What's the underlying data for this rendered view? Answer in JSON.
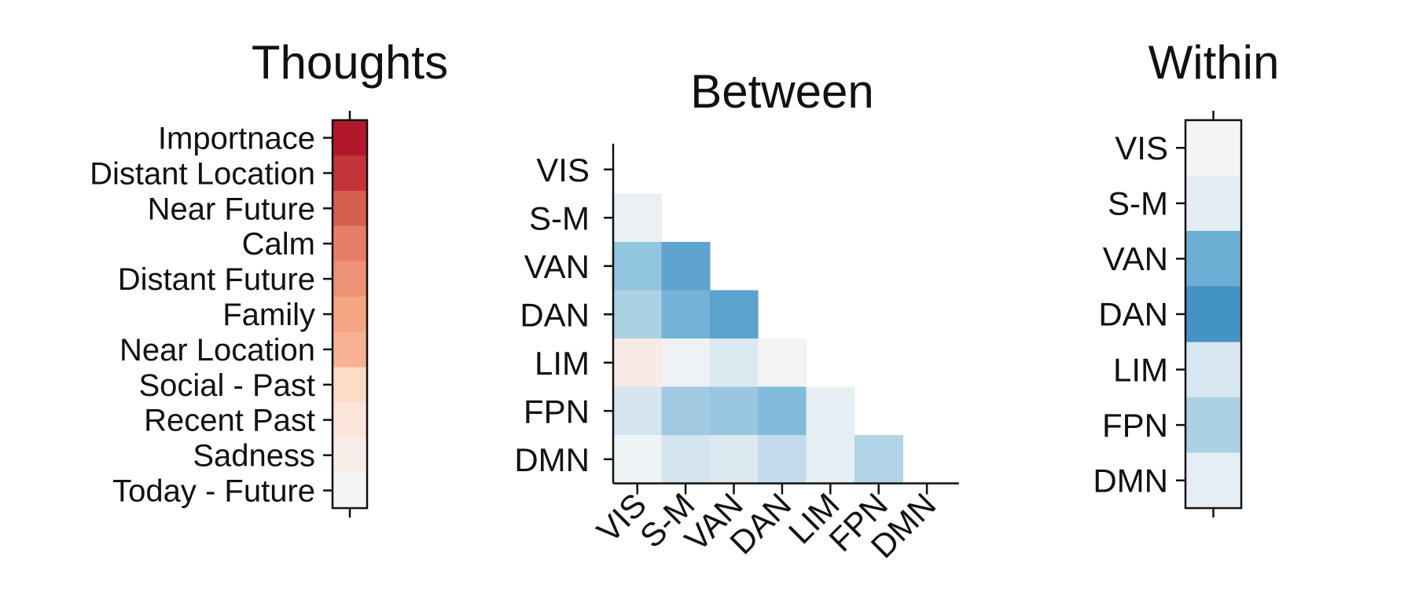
{
  "chart_data": [
    {
      "type": "heatmap",
      "title": "Thoughts",
      "rows": [
        "Importnace",
        "Distant Location",
        "Near Future",
        "Calm",
        "Distant Future",
        "Family",
        "Near Location",
        "Social - Past",
        "Recent Past",
        "Sadness",
        "Today - Future"
      ],
      "columns": [
        ""
      ],
      "colors": [
        "#b2182b",
        "#c0343a",
        "#d6604d",
        "#e57e68",
        "#ed9274",
        "#f4a582",
        "#f6b293",
        "#fddbc7",
        "#fbe4d9",
        "#f7ece7",
        "#f5f5f5"
      ],
      "colormap": "red-white-blue (diverging)"
    },
    {
      "type": "heatmap",
      "title": "Between",
      "rows": [
        "VIS",
        "S-M",
        "VAN",
        "DAN",
        "LIM",
        "FPN",
        "DMN"
      ],
      "columns": [
        "VIS",
        "S-M",
        "VAN",
        "DAN",
        "LIM",
        "FPN",
        "DMN"
      ],
      "mask": "lower-triangle",
      "cells": [
        [
          null,
          null,
          null,
          null,
          null,
          null,
          null
        ],
        [
          "#eaf0f4",
          null,
          null,
          null,
          null,
          null,
          null
        ],
        [
          "#92c5de",
          "#5fa4cf",
          null,
          null,
          null,
          null,
          null
        ],
        [
          "#abd1e5",
          "#74b2d8",
          "#5ba2cd",
          null,
          null,
          null,
          null
        ],
        [
          "#f8ebe6",
          "#eef2f5",
          "#dbe9f1",
          "#f2f3f5",
          null,
          null,
          null
        ],
        [
          "#d5e6f1",
          "#9fcae2",
          "#9ac7e0",
          "#82bcdc",
          "#e6edf3",
          null,
          null
        ],
        [
          "#eef3f5",
          "#d4e5f0",
          "#dce9f1",
          "#c2dcec",
          "#e6edf3",
          "#b2d4e7",
          null
        ]
      ],
      "colormap": "red-white-blue (diverging)"
    },
    {
      "type": "heatmap",
      "title": "Within",
      "rows": [
        "VIS",
        "S-M",
        "VAN",
        "DAN",
        "LIM",
        "FPN",
        "DMN"
      ],
      "columns": [
        ""
      ],
      "colors": [
        "#f4f5f5",
        "#e4edf3",
        "#6caed4",
        "#4393c3",
        "#d7e6f0",
        "#abd1e5",
        "#e6eef4"
      ],
      "colormap": "red-white-blue (diverging)"
    }
  ]
}
